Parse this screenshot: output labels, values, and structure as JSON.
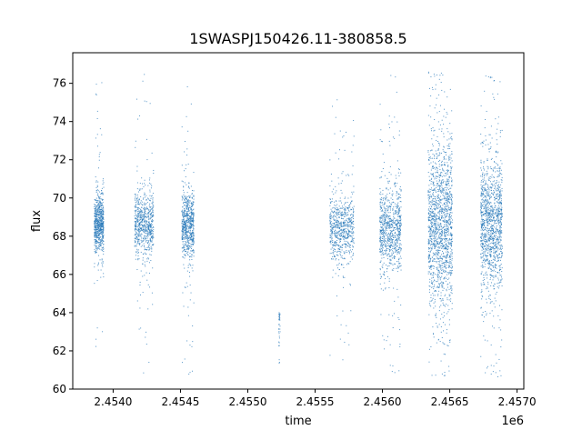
{
  "chart_data": {
    "type": "scatter",
    "title": "1SWASPJ150426.11-380858.5",
    "xlabel": "time",
    "ylabel": "flux",
    "x_offset_label": "1e6",
    "xlim": [
      2453700,
      2457050
    ],
    "ylim": [
      60.0,
      77.6
    ],
    "x_ticks": [
      2453500,
      2454000,
      2454500,
      2455000,
      2455500,
      2456000,
      2456500,
      2457000
    ],
    "x_tick_labels": [
      "2.4535",
      "2.4540",
      "2.4545",
      "2.4550",
      "2.4555",
      "2.4560",
      "2.4565",
      "2.4570"
    ],
    "y_ticks": [
      60,
      62,
      64,
      66,
      68,
      70,
      72,
      74,
      76
    ],
    "y_tick_labels": [
      "60",
      "62",
      "64",
      "66",
      "68",
      "70",
      "72",
      "74",
      "76"
    ],
    "grid": false,
    "legend": "none",
    "marker_color": "#2b7bba",
    "series": [
      {
        "note_segments": "observing seasons: [start, end, median flux, spread, min, max, density]",
        "segments": [
          [
            2453860,
            2453930,
            68.6,
            0.7,
            61.7,
            76.4,
            1
          ],
          [
            2454160,
            2454300,
            68.6,
            0.8,
            60.8,
            76.5,
            1
          ],
          [
            2454510,
            2454600,
            68.6,
            0.8,
            60.6,
            76.3,
            1
          ],
          [
            2455230,
            2455240,
            63.0,
            1.2,
            61.0,
            64.0,
            0.05
          ],
          [
            2455610,
            2455790,
            68.4,
            0.8,
            60.7,
            76.1,
            1
          ],
          [
            2455980,
            2456140,
            68.3,
            1.1,
            60.6,
            76.6,
            1.2
          ],
          [
            2456340,
            2456520,
            68.6,
            2.0,
            60.6,
            76.7,
            2.2
          ],
          [
            2456730,
            2456890,
            68.6,
            1.7,
            60.6,
            76.5,
            1.8
          ]
        ]
      }
    ]
  }
}
